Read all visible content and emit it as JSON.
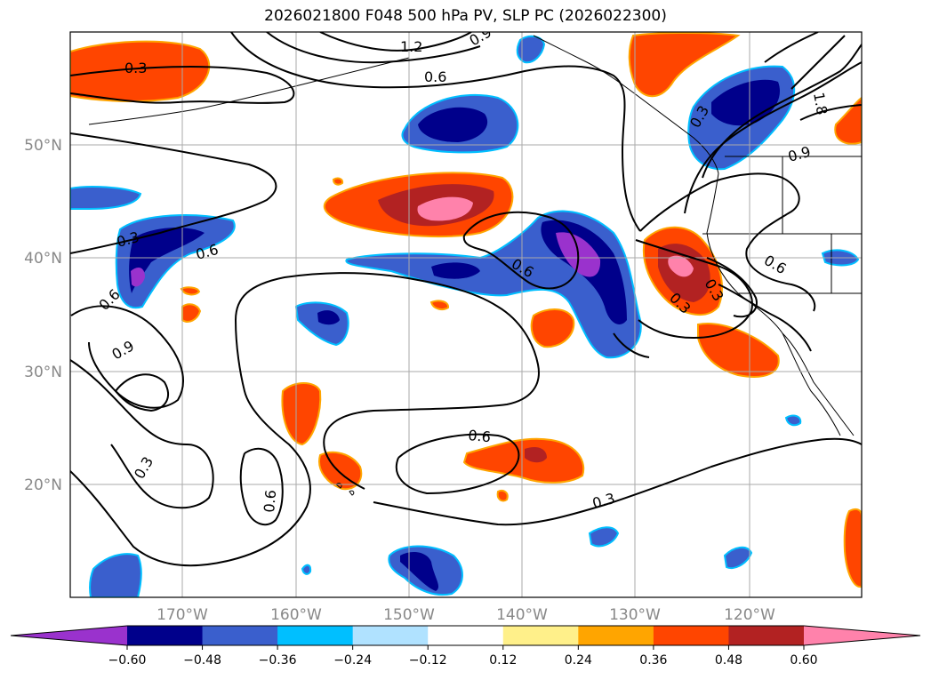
{
  "title": "2026021800 F048 500 hPa PV, SLP PC (2026022300)",
  "lon_labels": [
    "170°W",
    "160°W",
    "150°W",
    "140°W",
    "130°W",
    "120°W"
  ],
  "lat_labels": [
    "50°N",
    "40°N",
    "30°N",
    "20°N"
  ],
  "colorbar": {
    "colors": [
      "#9a32cd",
      "#00008b",
      "#3a5fcd",
      "#00bfff",
      "#b0e2ff",
      "#ffffff",
      "#fff08a",
      "#ffa500",
      "#ff4500",
      "#b22222",
      "#ff82ab"
    ],
    "tick_labels": [
      "−0.60",
      "−0.48",
      "−0.36",
      "−0.24",
      "−0.12",
      "0.12",
      "0.24",
      "0.36",
      "0.48",
      "0.60"
    ]
  },
  "contour_labels": [
    "0.3",
    "1.2",
    "0.9",
    "0.6",
    "0.3",
    "1.8",
    "0.3",
    "0.6",
    "0.6",
    "0.6",
    "0.9",
    "0.3",
    "0.6",
    "0.9",
    "0.3",
    "0.6",
    "0.6",
    "0.3",
    "0.3"
  ]
}
